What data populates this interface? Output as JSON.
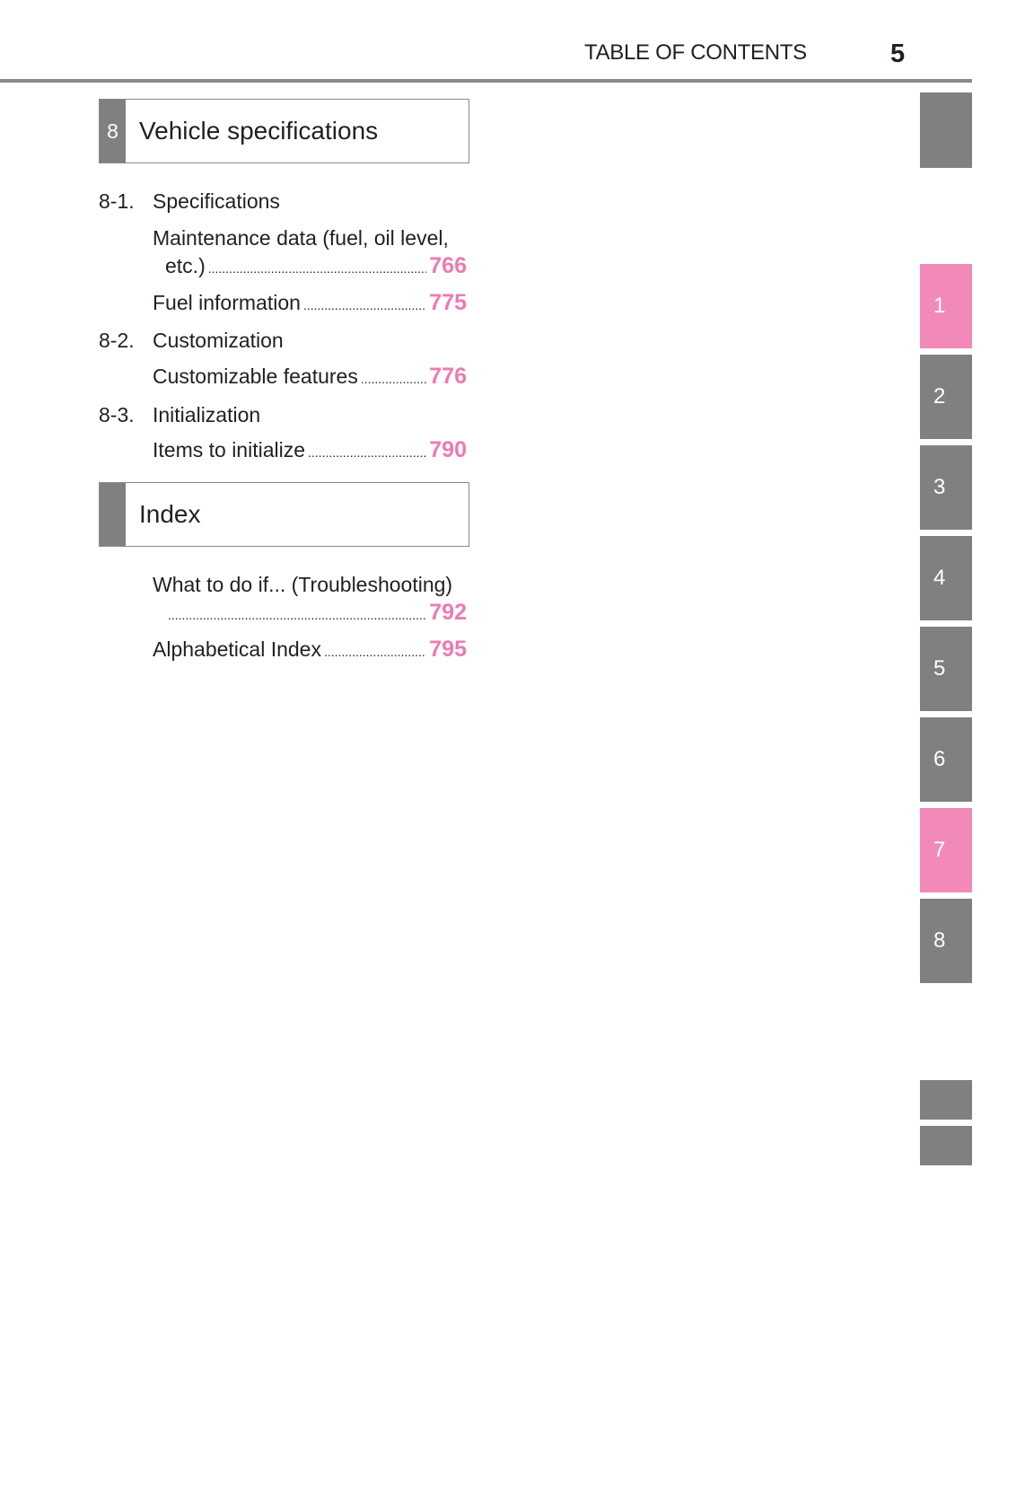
{
  "header": {
    "title": "TABLE OF CONTENTS",
    "page": "5"
  },
  "chapter8": {
    "number": "8",
    "title": "Vehicle specifications",
    "sections": [
      {
        "number": "8-1.",
        "title": "Specifications",
        "entries": [
          {
            "line1": "Maintenance data (fuel, oil level,",
            "label": "etc.)",
            "page": "766"
          },
          {
            "label": "Fuel information",
            "page": "775"
          }
        ]
      },
      {
        "number": "8-2.",
        "title": "Customization",
        "entries": [
          {
            "label": "Customizable features",
            "page": "776"
          }
        ]
      },
      {
        "number": "8-3.",
        "title": "Initialization",
        "entries": [
          {
            "label": "Items to initialize",
            "page": "790"
          }
        ]
      }
    ]
  },
  "index": {
    "title": "Index",
    "entries": [
      {
        "line1": "What to do if... (Troubleshooting)",
        "label": "",
        "page": "792"
      },
      {
        "label": "Alphabetical Index",
        "page": "795"
      }
    ]
  },
  "tabs": [
    "1",
    "2",
    "3",
    "4",
    "5",
    "6",
    "7",
    "8"
  ],
  "colors": {
    "gray": "#808083",
    "pink": "#f28ab9",
    "page_number": "#ee7ab2"
  }
}
